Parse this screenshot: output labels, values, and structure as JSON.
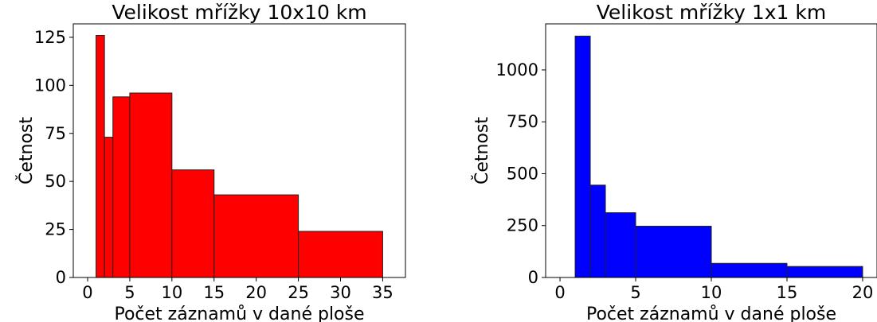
{
  "chart_data": [
    {
      "type": "bar",
      "title": "Velikost mřížky 10x10 km",
      "xlabel": "Počet záznamů v dané ploše",
      "ylabel": "Četnost",
      "xlim": [
        -1.7,
        37.7
      ],
      "ylim": [
        0,
        132
      ],
      "xticks": [
        0,
        5,
        10,
        15,
        20,
        25,
        30,
        35
      ],
      "yticks": [
        0,
        25,
        50,
        75,
        100,
        125
      ],
      "color": "#ff0000",
      "bins": [
        {
          "x0": 1,
          "x1": 2,
          "value": 126
        },
        {
          "x0": 2,
          "x1": 3,
          "value": 73
        },
        {
          "x0": 3,
          "x1": 5,
          "value": 94
        },
        {
          "x0": 5,
          "x1": 10,
          "value": 96
        },
        {
          "x0": 10,
          "x1": 15,
          "value": 56
        },
        {
          "x0": 15,
          "x1": 25,
          "value": 43
        },
        {
          "x0": 25,
          "x1": 35,
          "value": 24
        }
      ]
    },
    {
      "type": "bar",
      "title": "Velikost mřížky 1x1 km",
      "xlabel": "Počet záznamů v dané ploše",
      "ylabel": "Četnost",
      "xlim": [
        -0.95,
        20.95
      ],
      "ylim": [
        0,
        1222
      ],
      "xticks": [
        0,
        5,
        10,
        15,
        20
      ],
      "yticks": [
        0,
        250,
        500,
        750,
        1000
      ],
      "color": "#0000ff",
      "bins": [
        {
          "x0": 1,
          "x1": 2,
          "value": 1163
        },
        {
          "x0": 2,
          "x1": 3,
          "value": 445
        },
        {
          "x0": 3,
          "x1": 5,
          "value": 312
        },
        {
          "x0": 5,
          "x1": 10,
          "value": 247
        },
        {
          "x0": 10,
          "x1": 15,
          "value": 68
        },
        {
          "x0": 15,
          "x1": 20,
          "value": 53
        }
      ]
    }
  ]
}
